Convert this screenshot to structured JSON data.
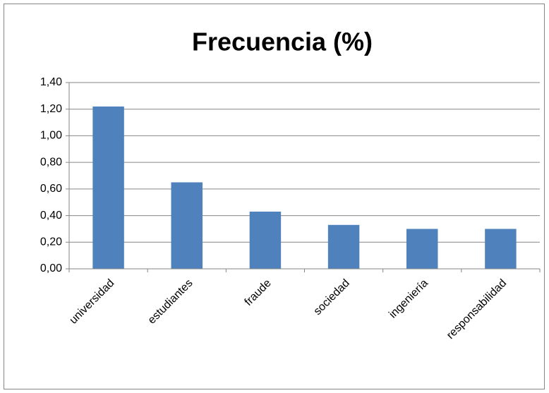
{
  "chart_data": {
    "type": "bar",
    "title": "Frecuencia (%)",
    "categories": [
      "universidad",
      "estudiantes",
      "fraude",
      "sociedad",
      "ingeniería",
      "responsabilidad"
    ],
    "values": [
      1.22,
      0.65,
      0.43,
      0.33,
      0.3,
      0.3
    ],
    "color": "#4f81bd",
    "ylim": [
      0,
      1.4
    ],
    "yticks": [
      {
        "value": 0,
        "label": "0,00"
      },
      {
        "value": 0.2,
        "label": "0,20"
      },
      {
        "value": 0.4,
        "label": "0,40"
      },
      {
        "value": 0.6,
        "label": "0,60"
      },
      {
        "value": 0.8,
        "label": "0,80"
      },
      {
        "value": 1.0,
        "label": "1,00"
      },
      {
        "value": 1.2,
        "label": "1,20"
      },
      {
        "value": 1.4,
        "label": "1,40"
      }
    ],
    "grid": true
  }
}
